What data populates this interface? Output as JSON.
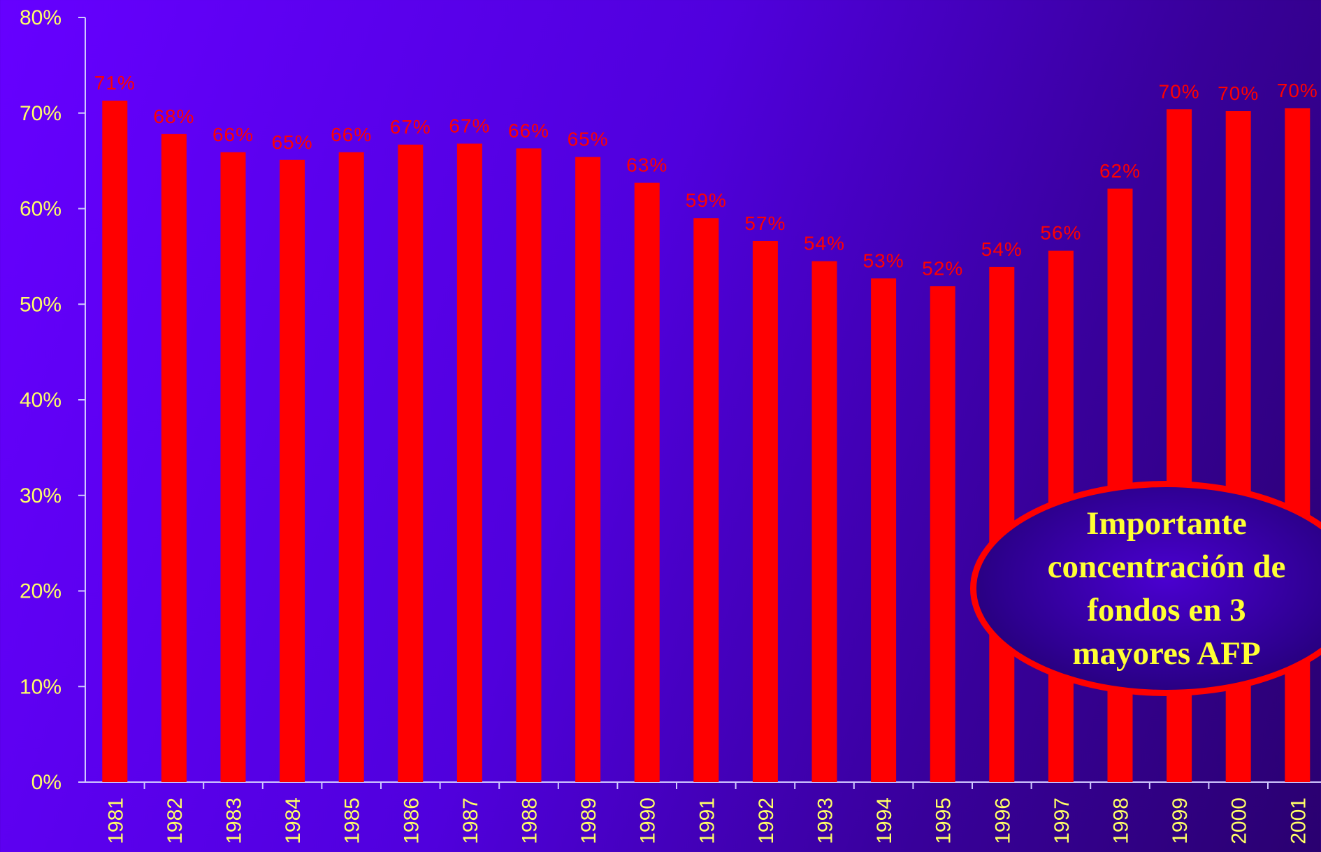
{
  "chart_data": {
    "type": "bar",
    "categories": [
      "1981",
      "1982",
      "1983",
      "1984",
      "1985",
      "1986",
      "1987",
      "1988",
      "1989",
      "1990",
      "1991",
      "1992",
      "1993",
      "1994",
      "1995",
      "1996",
      "1997",
      "1998",
      "1999",
      "2000",
      "2001"
    ],
    "values": [
      71.3,
      67.8,
      65.9,
      65.1,
      65.9,
      66.7,
      66.8,
      66.3,
      65.4,
      62.7,
      59.0,
      56.6,
      54.5,
      52.7,
      51.9,
      53.9,
      55.6,
      62.1,
      70.4,
      70.2,
      70.5
    ],
    "data_labels": [
      "71%",
      "68%",
      "66%",
      "65%",
      "66%",
      "67%",
      "67%",
      "66%",
      "65%",
      "63%",
      "59%",
      "57%",
      "54%",
      "53%",
      "52%",
      "54%",
      "56%",
      "62%",
      "70%",
      "70%",
      "70%"
    ],
    "yticks": [
      "0%",
      "10%",
      "20%",
      "30%",
      "40%",
      "50%",
      "60%",
      "70%",
      "80%"
    ],
    "ylim": [
      0,
      80
    ],
    "bar_color": "#ff0000",
    "grid": false,
    "title": "",
    "xlabel": "",
    "ylabel": ""
  },
  "callout": {
    "text_lines": [
      "Importante",
      "concentración de",
      "fondos en 3",
      "mayores AFP"
    ],
    "border_color": "#ff0000",
    "text_color": "#ffff33"
  }
}
